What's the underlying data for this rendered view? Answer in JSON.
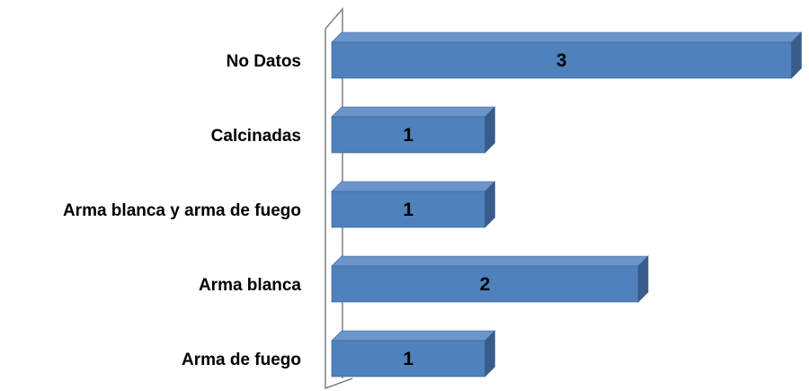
{
  "chart_data": {
    "type": "bar",
    "orientation": "horizontal",
    "three_d": true,
    "categories": [
      "No Datos",
      "Calcinadas",
      "Arma blanca y arma de fuego",
      "Arma blanca",
      "Arma de fuego"
    ],
    "values": [
      3,
      1,
      1,
      2,
      1
    ],
    "data_labels": [
      "3",
      "1",
      "1",
      "2",
      "1"
    ],
    "xlim": [
      0,
      3
    ],
    "grid": false,
    "legend": "none",
    "colors": {
      "bar_front": "#4F81BD",
      "bar_top": "#6B96CC",
      "bar_side": "#385D8A",
      "axis": "#808080"
    }
  }
}
